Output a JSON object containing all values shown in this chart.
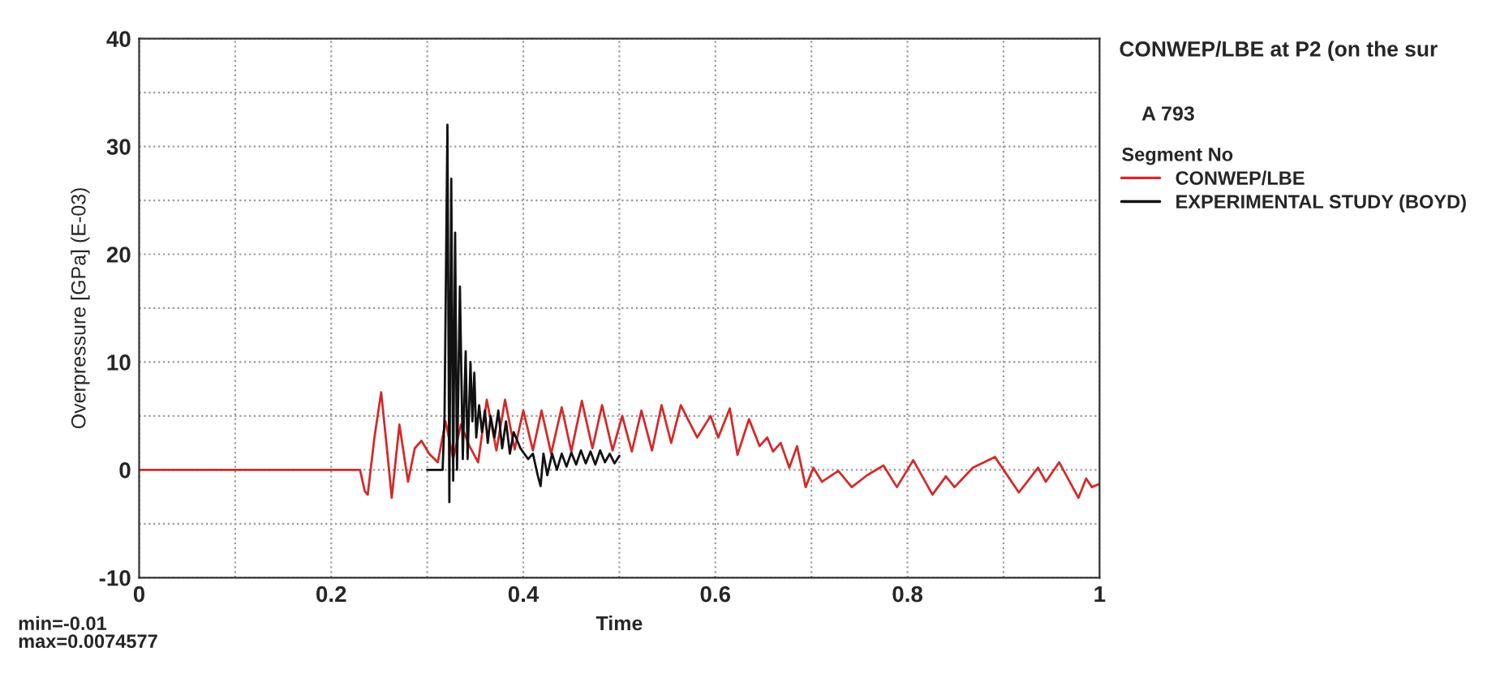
{
  "chart_data": {
    "type": "line",
    "title": "CONWEP/LBE at P2 (on the sur",
    "xlabel": "Time",
    "ylabel": "Overpressure [GPa] (E-03)",
    "legend_title": "Segment No",
    "xlim": [
      0,
      1
    ],
    "ylim": [
      -10,
      40
    ],
    "xticks": [
      0,
      {
        "value": 0.1,
        "label": null
      },
      0.2,
      {
        "value": 0.3,
        "label": null
      },
      0.4,
      {
        "value": 0.5,
        "label": null
      },
      0.6,
      {
        "value": 0.7,
        "label": null
      },
      0.8,
      {
        "value": 0.9,
        "label": null
      },
      1
    ],
    "yticks": [
      -10,
      {
        "value": -5,
        "label": null
      },
      0,
      {
        "value": 5,
        "label": null
      },
      10,
      {
        "value": 15,
        "label": null
      },
      20,
      {
        "value": 25,
        "label": null
      },
      30,
      {
        "value": 35,
        "label": null
      },
      40
    ],
    "grid": true,
    "legend": "right",
    "line_style": "solid",
    "marker": "none",
    "annotations": [
      "A 793",
      "min=-0.01",
      "max=0.0074577"
    ],
    "series": [
      {
        "name": "CONWEP/LBE",
        "color": "#d42a2a",
        "x": [
          0,
          0.23,
          0.235,
          0.238,
          0.245,
          0.252,
          0.258,
          0.263,
          0.271,
          0.28,
          0.287,
          0.294,
          0.302,
          0.311,
          0.319,
          0.327,
          0.335,
          0.344,
          0.353,
          0.362,
          0.372,
          0.381,
          0.391,
          0.4,
          0.41,
          0.419,
          0.429,
          0.44,
          0.45,
          0.461,
          0.472,
          0.482,
          0.493,
          0.503,
          0.513,
          0.523,
          0.534,
          0.544,
          0.554,
          0.564,
          0.581,
          0.595,
          0.603,
          0.615,
          0.623,
          0.635,
          0.646,
          0.654,
          0.66,
          0.668,
          0.677,
          0.685,
          0.694,
          0.702,
          0.711,
          0.728,
          0.742,
          0.758,
          0.775,
          0.789,
          0.806,
          0.826,
          0.84,
          0.849,
          0.868,
          0.891,
          0.916,
          0.936,
          0.944,
          0.958,
          0.978,
          0.986,
          0.992,
          1.0
        ],
        "values": [
          0,
          0,
          -2,
          -2.3,
          3,
          7.2,
          2,
          -2.6,
          4.2,
          -1.1,
          2,
          2.7,
          1.5,
          0.7,
          4.5,
          1,
          4.2,
          2.2,
          0.7,
          6.5,
          1.8,
          6.5,
          1.9,
          5.5,
          1.8,
          5.5,
          1.5,
          5.8,
          1.7,
          6.4,
          2,
          6,
          1.8,
          5,
          1.7,
          5.5,
          1.8,
          6,
          2.5,
          6,
          3,
          5,
          3,
          5.7,
          1.4,
          4.7,
          2.2,
          3,
          1.7,
          2.5,
          0.2,
          2.2,
          -1.6,
          0.2,
          -1.1,
          -0.1,
          -1.6,
          -0.5,
          0.4,
          -1.6,
          0.9,
          -2.3,
          -0.6,
          -1.6,
          0.2,
          1.2,
          -2.1,
          0.2,
          -1.1,
          0.7,
          -2.6,
          -0.8,
          -1.6,
          -1.3
        ]
      },
      {
        "name": "EXPERIMENTAL STUDY (BOYD)",
        "color": "#111111",
        "x": [
          0.3,
          0.316,
          0.318,
          0.321,
          0.323,
          0.325,
          0.327,
          0.329,
          0.331,
          0.334,
          0.337,
          0.34,
          0.342,
          0.345,
          0.347,
          0.349,
          0.351,
          0.354,
          0.357,
          0.36,
          0.363,
          0.366,
          0.37,
          0.374,
          0.378,
          0.382,
          0.386,
          0.39,
          0.397,
          0.405,
          0.41,
          0.415,
          0.418,
          0.421,
          0.425,
          0.43,
          0.435,
          0.44,
          0.445,
          0.45,
          0.455,
          0.46,
          0.465,
          0.47,
          0.475,
          0.48,
          0.485,
          0.49,
          0.495,
          0.5
        ],
        "values": [
          0,
          0,
          5,
          32,
          -3,
          27,
          -1,
          22,
          0,
          17,
          1,
          11,
          1,
          10,
          4.5,
          9,
          3,
          6,
          3.5,
          5.5,
          2.5,
          5,
          3,
          5.5,
          2,
          4.5,
          1.5,
          3.5,
          2,
          1,
          1.5,
          -0.5,
          -1.5,
          1.5,
          -0.5,
          1.5,
          0,
          1.5,
          0.3,
          1.6,
          0.5,
          1.8,
          0.6,
          1.7,
          0.5,
          1.8,
          0.7,
          1.5,
          0.6,
          1.3
        ]
      }
    ]
  }
}
